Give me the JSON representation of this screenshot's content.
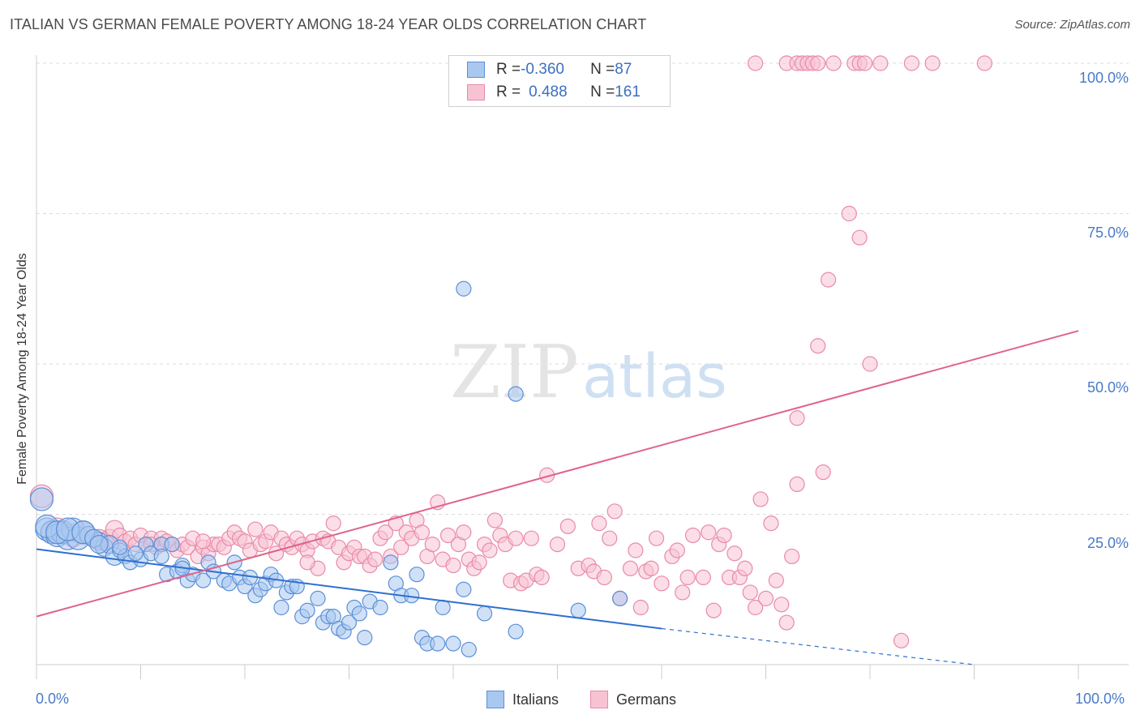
{
  "title": "ITALIAN VS GERMAN FEMALE POVERTY AMONG 18-24 YEAR OLDS CORRELATION CHART",
  "source": "Source: ZipAtlas.com",
  "watermark": {
    "zip": "ZIP",
    "atlas": "atlas"
  },
  "colors": {
    "italians_fill": "#a9c8f0",
    "italians_stroke": "#5b8fd6",
    "italians_line": "#2e6fd1",
    "germans_fill": "#f7c3d3",
    "germans_stroke": "#e98aa8",
    "germans_line": "#e0628c",
    "tick_text": "#4a7ac7",
    "grid": "#dcdcdc"
  },
  "legend": {
    "rows": [
      {
        "r_label": "R = ",
        "r_value": "-0.360",
        "n_label": "N = ",
        "n_value": "87"
      },
      {
        "r_label": "R = ",
        "r_value": "0.488",
        "n_label": "N = ",
        "n_value": "161"
      }
    ]
  },
  "bottom_legend": {
    "italians": "Italians",
    "germans": "Germans"
  },
  "chart_data": {
    "type": "scatter",
    "title": "ITALIAN VS GERMAN FEMALE POVERTY AMONG 18-24 YEAR OLDS CORRELATION CHART",
    "xlabel": "",
    "ylabel": "Female Poverty Among 18-24 Year Olds",
    "xlim": [
      0,
      100
    ],
    "ylim": [
      0,
      100
    ],
    "x_tick_labels": [
      "0.0%",
      "100.0%"
    ],
    "y_tick_labels": [
      "100.0%",
      "75.0%",
      "50.0%",
      "25.0%"
    ],
    "y_ticks": [
      100,
      75,
      50,
      25
    ],
    "grid": true,
    "legend_position": "top-center",
    "series": [
      {
        "name": "Italians",
        "r": -0.36,
        "n": 87,
        "trend": {
          "x0": 0,
          "y0": 19.2,
          "x1": 60,
          "y1": 6.0,
          "dashed_to_x": 90,
          "dashed_to_y": 0
        },
        "points": [
          [
            0.5,
            27.5
          ],
          [
            1,
            22.5
          ],
          [
            1.5,
            22
          ],
          [
            2,
            21.5
          ],
          [
            2.5,
            22
          ],
          [
            3,
            21
          ],
          [
            3.5,
            22.5
          ],
          [
            4,
            21
          ],
          [
            4.5,
            22
          ],
          [
            5,
            21.5
          ],
          [
            6,
            20.5
          ],
          [
            6.5,
            19.5
          ],
          [
            7,
            20
          ],
          [
            7.5,
            18
          ],
          [
            8,
            19
          ],
          [
            8.5,
            18
          ],
          [
            9,
            17
          ],
          [
            10,
            17.5
          ],
          [
            10.5,
            20
          ],
          [
            11,
            18.5
          ],
          [
            12,
            20
          ],
          [
            12.5,
            15
          ],
          [
            13,
            20
          ],
          [
            13.5,
            15.5
          ],
          [
            14,
            16.5
          ],
          [
            14.5,
            14
          ],
          [
            15,
            15
          ],
          [
            16,
            14
          ],
          [
            16.5,
            17
          ],
          [
            17,
            15.5
          ],
          [
            18,
            14
          ],
          [
            18.5,
            13.5
          ],
          [
            19,
            17
          ],
          [
            19.5,
            14.5
          ],
          [
            20,
            13
          ],
          [
            20.5,
            14.5
          ],
          [
            21,
            11.5
          ],
          [
            21.5,
            12.5
          ],
          [
            22,
            13.5
          ],
          [
            22.5,
            15
          ],
          [
            23,
            14
          ],
          [
            23.5,
            9.5
          ],
          [
            24,
            12
          ],
          [
            24.5,
            13
          ],
          [
            25,
            13
          ],
          [
            25.5,
            8
          ],
          [
            26,
            9
          ],
          [
            27,
            11
          ],
          [
            27.5,
            7
          ],
          [
            28,
            8
          ],
          [
            28.5,
            8
          ],
          [
            29,
            6
          ],
          [
            29.5,
            5.5
          ],
          [
            30,
            7
          ],
          [
            30.5,
            9.5
          ],
          [
            31,
            8.5
          ],
          [
            31.5,
            4.5
          ],
          [
            32,
            10.5
          ],
          [
            33,
            9.5
          ],
          [
            34,
            17
          ],
          [
            34.5,
            13.5
          ],
          [
            35,
            11.5
          ],
          [
            36,
            11.5
          ],
          [
            36.5,
            15
          ],
          [
            37,
            4.5
          ],
          [
            37.5,
            3.5
          ],
          [
            38.5,
            3.5
          ],
          [
            39,
            9.5
          ],
          [
            40,
            3.5
          ],
          [
            41,
            12.5
          ],
          [
            41.5,
            2.5
          ],
          [
            43,
            8.5
          ],
          [
            46,
            5.5
          ],
          [
            46,
            45
          ],
          [
            41,
            62.5
          ],
          [
            52,
            9
          ],
          [
            56,
            11
          ],
          [
            1,
            23
          ],
          [
            2,
            22
          ],
          [
            3,
            22.5
          ],
          [
            4.5,
            22
          ],
          [
            5.5,
            21
          ],
          [
            6,
            20
          ],
          [
            8,
            19.5
          ],
          [
            9.5,
            18.5
          ],
          [
            12,
            18
          ],
          [
            14,
            16
          ]
        ]
      },
      {
        "name": "Germans",
        "r": 0.488,
        "n": 161,
        "trend": {
          "x0": 0,
          "y0": 8.0,
          "x1": 100,
          "y1": 55.5
        },
        "points": [
          [
            0.5,
            28
          ],
          [
            1.5,
            22
          ],
          [
            2.5,
            22
          ],
          [
            3.5,
            21.5
          ],
          [
            4.5,
            22
          ],
          [
            5.5,
            21
          ],
          [
            6.5,
            20.5
          ],
          [
            7,
            21
          ],
          [
            7.5,
            22.5
          ],
          [
            8,
            21.5
          ],
          [
            8.5,
            20.5
          ],
          [
            9,
            21
          ],
          [
            9.5,
            20
          ],
          [
            10,
            21.5
          ],
          [
            10.5,
            20
          ],
          [
            11,
            21
          ],
          [
            11.5,
            19.5
          ],
          [
            12,
            21
          ],
          [
            12.5,
            20.5
          ],
          [
            13,
            20
          ],
          [
            13.5,
            19
          ],
          [
            14,
            20
          ],
          [
            14.5,
            19.5
          ],
          [
            15,
            21
          ],
          [
            15.5,
            18
          ],
          [
            16,
            19.5
          ],
          [
            16.5,
            18.5
          ],
          [
            17,
            20
          ],
          [
            17.5,
            20
          ],
          [
            18,
            19.5
          ],
          [
            18.5,
            21
          ],
          [
            19,
            22
          ],
          [
            19.5,
            21
          ],
          [
            20,
            20.5
          ],
          [
            20.5,
            19
          ],
          [
            21,
            22.5
          ],
          [
            21.5,
            20
          ],
          [
            22,
            20.5
          ],
          [
            22.5,
            22
          ],
          [
            23,
            18.5
          ],
          [
            23.5,
            21
          ],
          [
            24,
            20
          ],
          [
            24.5,
            19.5
          ],
          [
            25,
            21
          ],
          [
            25.5,
            20
          ],
          [
            26,
            19
          ],
          [
            26.5,
            20.5
          ],
          [
            27,
            16
          ],
          [
            27.5,
            21
          ],
          [
            28,
            20.5
          ],
          [
            28.5,
            23.5
          ],
          [
            29,
            19.5
          ],
          [
            29.5,
            17
          ],
          [
            30,
            18.5
          ],
          [
            30.5,
            19.5
          ],
          [
            31,
            18
          ],
          [
            31.5,
            18
          ],
          [
            32,
            16.5
          ],
          [
            32.5,
            17.5
          ],
          [
            33,
            21
          ],
          [
            33.5,
            22
          ],
          [
            34,
            18
          ],
          [
            34.5,
            23.5
          ],
          [
            35,
            19.5
          ],
          [
            35.5,
            22
          ],
          [
            36,
            21
          ],
          [
            36.5,
            24
          ],
          [
            37,
            22
          ],
          [
            37.5,
            18
          ],
          [
            38,
            20
          ],
          [
            38.5,
            27
          ],
          [
            39,
            17.5
          ],
          [
            39.5,
            21.5
          ],
          [
            40,
            16.5
          ],
          [
            40.5,
            20
          ],
          [
            41,
            22
          ],
          [
            41.5,
            17.5
          ],
          [
            42,
            16
          ],
          [
            42.5,
            17
          ],
          [
            43,
            20
          ],
          [
            43.5,
            19
          ],
          [
            44,
            24
          ],
          [
            44.5,
            21.5
          ],
          [
            45,
            20
          ],
          [
            45.5,
            14
          ],
          [
            46,
            21
          ],
          [
            46.5,
            13.5
          ],
          [
            47,
            14
          ],
          [
            47.5,
            21
          ],
          [
            48,
            15
          ],
          [
            48.5,
            14.5
          ],
          [
            49,
            31.5
          ],
          [
            50,
            20
          ],
          [
            51,
            23
          ],
          [
            52,
            16
          ],
          [
            53,
            16.5
          ],
          [
            53.5,
            15.5
          ],
          [
            54,
            23.5
          ],
          [
            54.5,
            14.5
          ],
          [
            55,
            21
          ],
          [
            55.5,
            25.5
          ],
          [
            56,
            11
          ],
          [
            57,
            16
          ],
          [
            57.5,
            19
          ],
          [
            58,
            9.5
          ],
          [
            58.5,
            15.5
          ],
          [
            59,
            16
          ],
          [
            59.5,
            21
          ],
          [
            60,
            13.5
          ],
          [
            61,
            18
          ],
          [
            61.5,
            19
          ],
          [
            62,
            12
          ],
          [
            62.5,
            14.5
          ],
          [
            63,
            21.5
          ],
          [
            64,
            14.5
          ],
          [
            64.5,
            22
          ],
          [
            65,
            9
          ],
          [
            65.5,
            20
          ],
          [
            66,
            21.5
          ],
          [
            66.5,
            14.5
          ],
          [
            67,
            18.5
          ],
          [
            67.5,
            14.5
          ],
          [
            68,
            16
          ],
          [
            68.5,
            12
          ],
          [
            69,
            9.5
          ],
          [
            69.5,
            27.5
          ],
          [
            70,
            11
          ],
          [
            70.5,
            23.5
          ],
          [
            71,
            14
          ],
          [
            71.5,
            10
          ],
          [
            72,
            7
          ],
          [
            72.5,
            18
          ],
          [
            73,
            30
          ],
          [
            73,
            41
          ],
          [
            75,
            53
          ],
          [
            75.5,
            32
          ],
          [
            76,
            64
          ],
          [
            78,
            75
          ],
          [
            79,
            71
          ],
          [
            80,
            50
          ],
          [
            83,
            4
          ],
          [
            69,
            100
          ],
          [
            72,
            100
          ],
          [
            73,
            100
          ],
          [
            73.5,
            100
          ],
          [
            74,
            100
          ],
          [
            74.5,
            100
          ],
          [
            75,
            100
          ],
          [
            76.5,
            100
          ],
          [
            78.5,
            100
          ],
          [
            79,
            100
          ],
          [
            79.5,
            100
          ],
          [
            81,
            100
          ],
          [
            84,
            100
          ],
          [
            86,
            100
          ],
          [
            91,
            100
          ],
          [
            2,
            22.5
          ],
          [
            6,
            21
          ],
          [
            11,
            20
          ],
          [
            16,
            20.5
          ],
          [
            26,
            17
          ]
        ]
      }
    ]
  }
}
